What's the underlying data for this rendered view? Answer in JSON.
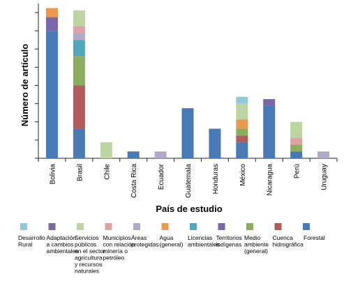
{
  "chart_data": {
    "type": "bar",
    "stacked": true,
    "title": "",
    "xlabel": "País de estudio",
    "ylabel": "Número de artículo",
    "ylim": [
      0,
      34
    ],
    "grid": false,
    "y_tick_labels_shown": false,
    "legend_position": "bottom",
    "categories": [
      "Bolivia",
      "Brasil",
      "Chile",
      "Costa Rica",
      "Ecuador",
      "Guatemala",
      "Honduras",
      "México",
      "Nicaragua",
      "Perú",
      "Uruguay"
    ],
    "series": [
      {
        "name": "Forestal",
        "color": "#4a7ab5",
        "values": [
          28,
          6.5,
          0,
          1.5,
          0,
          11,
          6.5,
          3.5,
          11.5,
          1.5,
          0
        ]
      },
      {
        "name": "Cuenca hidrográfica",
        "color": "#b55a5a",
        "values": [
          0,
          9.5,
          0,
          0,
          0,
          0,
          0,
          1.5,
          0,
          0,
          0
        ]
      },
      {
        "name": "Medio ambiente (general)",
        "color": "#8bae5e",
        "values": [
          0,
          6.5,
          0,
          0,
          0,
          0,
          0,
          1.5,
          0,
          1.5,
          0
        ]
      },
      {
        "name": "Territorios indígenas",
        "color": "#7a67a8",
        "values": [
          3,
          0,
          0,
          0,
          0,
          0,
          0,
          0,
          1.5,
          0,
          0
        ]
      },
      {
        "name": "Licencias ambientales",
        "color": "#4ea7bd",
        "values": [
          0,
          3.5,
          0,
          0,
          0,
          0,
          0,
          0,
          0,
          0,
          0
        ]
      },
      {
        "name": "Agua (general)",
        "color": "#e89a50",
        "values": [
          2,
          0,
          0,
          0,
          0,
          0,
          0,
          2,
          0,
          0,
          0
        ]
      },
      {
        "name": "Áreas protegidas",
        "color": "#b0a9c8",
        "values": [
          0,
          1.5,
          0,
          0,
          1.5,
          0,
          0,
          0,
          0,
          0,
          1.5
        ]
      },
      {
        "name": "Municipios con relación minería o petróleo",
        "color": "#dea2a2",
        "values": [
          0,
          1.5,
          0,
          0,
          0,
          0,
          0,
          0,
          0,
          1.5,
          0
        ]
      },
      {
        "name": "Servicios públicos en el sector agricultura y recursos naturales",
        "color": "#bcd4a2",
        "values": [
          0,
          3.5,
          3.5,
          0,
          0,
          0,
          0,
          3.5,
          0,
          3.5,
          0
        ]
      },
      {
        "name": "Adaptación a cambios ambientales",
        "color": "#7d6aa5",
        "values": [
          0,
          0,
          0,
          0,
          0,
          0,
          0,
          0,
          0,
          0,
          0
        ]
      },
      {
        "name": "Desarrollo Rural",
        "color": "#92c9d8",
        "values": [
          0,
          0,
          0,
          0,
          0,
          0,
          0,
          1.5,
          0,
          0,
          0
        ]
      }
    ],
    "legend": [
      {
        "label": "Desarrollo\nRural",
        "color": "#92c9d8"
      },
      {
        "label": "Adaptación\na cambios\nambientales",
        "color": "#7d6aa5"
      },
      {
        "label": "Servicios\npúblicos\nen el sector\nagricultura\ny recursos\nnaturales",
        "color": "#bcd4a2"
      },
      {
        "label": "Municipios\ncon relación\nminería o\npetróleo",
        "color": "#dea2a2"
      },
      {
        "label": "Áreas\nprotegidas",
        "color": "#b0a9c8"
      },
      {
        "label": "Agua\n(general)",
        "color": "#e89a50"
      },
      {
        "label": "Licencias\nambientales",
        "color": "#4ea7bd"
      },
      {
        "label": "Territorios\nindígenas",
        "color": "#7a67a8"
      },
      {
        "label": "Medio\nambiente\n(general)",
        "color": "#8bae5e"
      },
      {
        "label": "Cuenca\nhidrográfica",
        "color": "#b55a5a"
      },
      {
        "label": "Forestal",
        "color": "#4a7ab5"
      }
    ]
  }
}
